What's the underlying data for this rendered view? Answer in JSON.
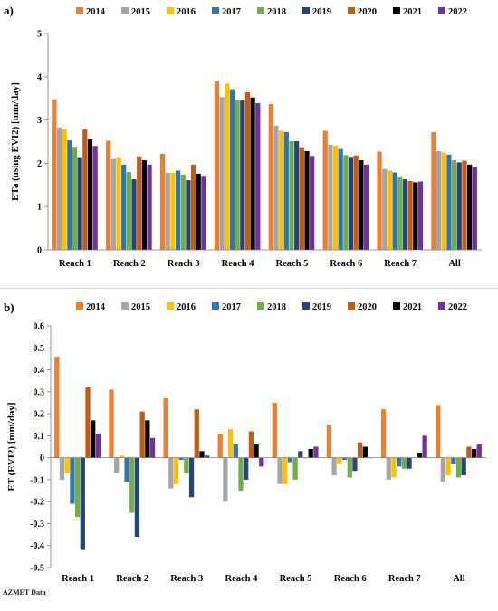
{
  "colors": {
    "2014": "#ED7D31",
    "2015": "#A5A5A5",
    "2016": "#FFC000",
    "2017": "#2E75B6",
    "2018": "#70AD47",
    "2019": "#264478",
    "2020": "#C55A11",
    "2021": "#000000",
    "2022": "#7030A0"
  },
  "source_note": "AZMET Data",
  "chart_data": [
    {
      "panel_label": "a)",
      "type": "bar",
      "title": "",
      "xlabel": "",
      "ylabel": "ETa (using EVI2) [mm/day]",
      "ylim": [
        0,
        5
      ],
      "yticks": [
        0,
        1,
        2,
        3,
        4,
        5
      ],
      "ytick_labels": [
        "0",
        "1",
        "2",
        "3",
        "4",
        "5"
      ],
      "legend_position": "top",
      "grid": false,
      "categories": [
        "Reach 1",
        "Reach 2",
        "Reach 3",
        "Reach 4",
        "Reach 5",
        "Reach 6",
        "Reach 7",
        "All"
      ],
      "series": [
        {
          "name": "2014",
          "values": [
            3.48,
            2.52,
            2.22,
            3.9,
            3.37,
            2.75,
            2.27,
            2.72
          ]
        },
        {
          "name": "2015",
          "values": [
            2.83,
            2.1,
            1.78,
            3.53,
            2.87,
            2.43,
            1.87,
            2.28
          ]
        },
        {
          "name": "2016",
          "values": [
            2.78,
            2.14,
            1.78,
            3.84,
            2.75,
            2.41,
            1.83,
            2.25
          ]
        },
        {
          "name": "2017",
          "values": [
            2.53,
            1.97,
            1.83,
            3.71,
            2.72,
            2.33,
            1.79,
            2.2
          ]
        },
        {
          "name": "2018",
          "values": [
            2.38,
            1.8,
            1.74,
            3.45,
            2.51,
            2.19,
            1.7,
            2.07
          ]
        },
        {
          "name": "2019",
          "values": [
            2.14,
            1.63,
            1.61,
            3.45,
            2.51,
            2.15,
            1.63,
            2.02
          ]
        },
        {
          "name": "2020",
          "values": [
            2.78,
            2.16,
            1.97,
            3.64,
            2.37,
            2.18,
            1.59,
            2.06
          ]
        },
        {
          "name": "2021",
          "values": [
            2.55,
            2.07,
            1.76,
            3.52,
            2.28,
            2.07,
            1.56,
            1.97
          ]
        },
        {
          "name": "2022",
          "values": [
            2.4,
            1.97,
            1.71,
            3.39,
            2.17,
            1.97,
            1.58,
            1.92
          ]
        }
      ]
    },
    {
      "panel_label": "b)",
      "type": "bar",
      "title": "",
      "xlabel": "",
      "ylabel": "ET (EVI2) [mm/day]",
      "ylim": [
        -0.5,
        0.6
      ],
      "yticks": [
        -0.5,
        -0.4,
        -0.3,
        -0.2,
        -0.1,
        0,
        0.1,
        0.2,
        0.3,
        0.4,
        0.5,
        0.6
      ],
      "ytick_labels": [
        "-0.5",
        "-0.4",
        "-0.3",
        "-0.2",
        "-0.1",
        "0",
        "0.1",
        "0.2",
        "0.3",
        "0.4",
        "0.5",
        "0.6"
      ],
      "legend_position": "top",
      "grid": false,
      "categories": [
        "Reach 1",
        "Reach 2",
        "Reach 3",
        "Reach 4",
        "Reach 5",
        "Reach 6",
        "Reach 7",
        "All"
      ],
      "series": [
        {
          "name": "2014",
          "values": [
            0.46,
            0.31,
            0.27,
            0.11,
            0.25,
            0.15,
            0.22,
            0.24
          ]
        },
        {
          "name": "2015",
          "values": [
            -0.1,
            -0.07,
            -0.14,
            -0.2,
            -0.12,
            -0.08,
            -0.1,
            -0.11
          ]
        },
        {
          "name": "2016",
          "values": [
            -0.07,
            0.01,
            -0.12,
            0.13,
            -0.12,
            -0.03,
            -0.09,
            -0.08
          ]
        },
        {
          "name": "2017",
          "values": [
            -0.21,
            -0.11,
            -0.01,
            0.06,
            -0.02,
            -0.01,
            -0.04,
            -0.03
          ]
        },
        {
          "name": "2018",
          "values": [
            -0.27,
            -0.25,
            -0.07,
            -0.15,
            -0.1,
            -0.09,
            -0.05,
            -0.09
          ]
        },
        {
          "name": "2019",
          "values": [
            -0.42,
            -0.36,
            -0.18,
            -0.1,
            0.03,
            -0.06,
            -0.05,
            -0.08
          ]
        },
        {
          "name": "2020",
          "values": [
            0.32,
            0.21,
            0.22,
            0.12,
            0.0,
            0.07,
            0.0,
            0.05
          ]
        },
        {
          "name": "2021",
          "values": [
            0.17,
            0.17,
            0.03,
            0.06,
            0.04,
            0.05,
            0.02,
            0.04
          ]
        },
        {
          "name": "2022",
          "values": [
            0.11,
            0.09,
            0.01,
            -0.04,
            0.05,
            0.0,
            0.1,
            0.06
          ]
        }
      ]
    }
  ]
}
